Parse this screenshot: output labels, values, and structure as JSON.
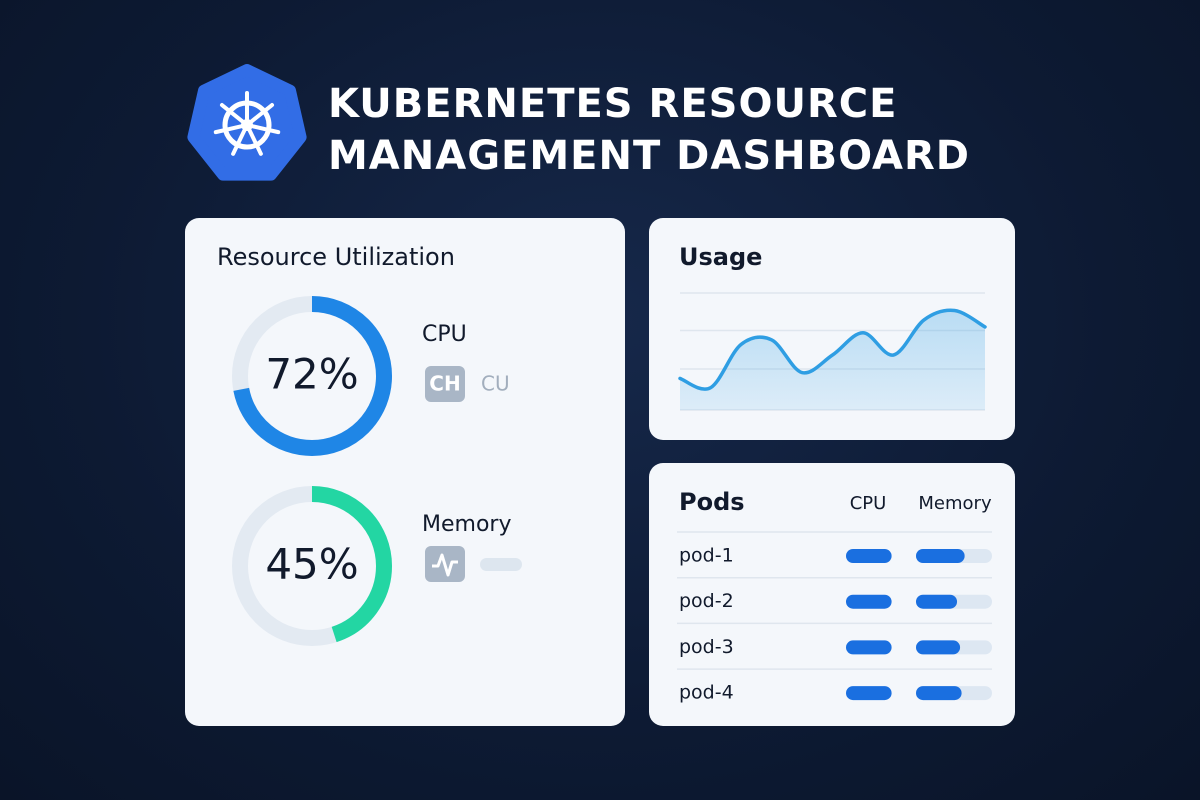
{
  "header": {
    "title_lines": [
      "KUBERNETES RESOURCE",
      "MANAGEMENT DASHBOARD"
    ]
  },
  "utilization": {
    "title": "Resource Utilization",
    "gauges": [
      {
        "name": "CPU",
        "value": 72,
        "value_label": "72%",
        "color": "#1f86e6",
        "icon_text": "CH",
        "sub_label": "CU"
      },
      {
        "name": "Memory",
        "value": 45,
        "value_label": "45%",
        "color": "#23d6a3"
      }
    ]
  },
  "usage": {
    "title": "Usage",
    "type": "line",
    "values": [
      27,
      19,
      56,
      60,
      32,
      47,
      66,
      47,
      77,
      85,
      71
    ],
    "ylim": [
      0,
      100
    ],
    "yticks": [
      35,
      68,
      100
    ],
    "color": "#2f9ee3"
  },
  "pods": {
    "title": "Pods",
    "columns": [
      "CPU",
      "Memory"
    ],
    "xlim": [
      0,
      100
    ],
    "color": "#1a6fe0",
    "rows": [
      {
        "name": "pod-1",
        "cpu": 60,
        "memory": 64
      },
      {
        "name": "pod-2",
        "cpu": 60,
        "memory": 54
      },
      {
        "name": "pod-3",
        "cpu": 60,
        "memory": 58
      },
      {
        "name": "pod-4",
        "cpu": 60,
        "memory": 60
      }
    ]
  }
}
